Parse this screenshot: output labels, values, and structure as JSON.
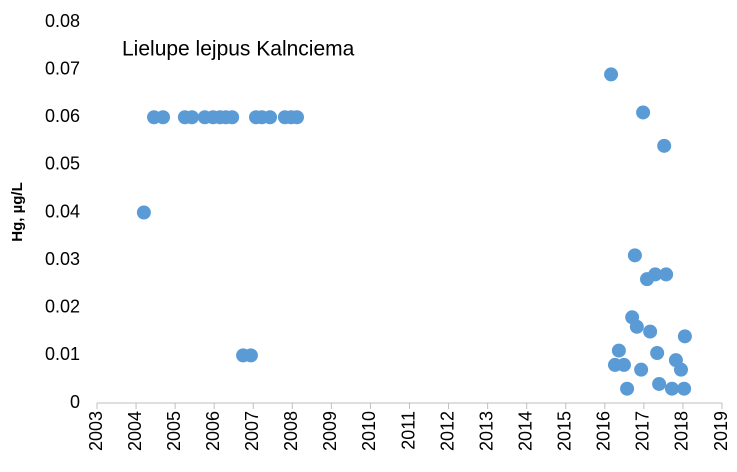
{
  "chart_data": {
    "type": "scatter",
    "annotation": "Lielupe lejpus Kalnciema",
    "ylabel": "Hg, µg/L",
    "series": [
      {
        "color": "#5b9bd5",
        "x": [
          2004.2,
          2004.46,
          2004.69,
          2005.25,
          2005.43,
          2005.76,
          2005.97,
          2006.15,
          2006.3,
          2006.46,
          2007.07,
          2007.22,
          2007.43,
          2007.81,
          2007.97,
          2008.12,
          2006.74,
          2006.94,
          2016.16,
          2016.98,
          2017.52,
          2016.77,
          2017.08,
          2017.29,
          2017.57,
          2016.7,
          2016.82,
          2017.16,
          2016.36,
          2016.26,
          2016.49,
          2016.93,
          2017.34,
          2016.57,
          2017.39,
          2017.72,
          2017.82,
          2017.95,
          2018.03,
          2018.05
        ],
        "values": [
          0.04,
          0.06,
          0.06,
          0.06,
          0.06,
          0.06,
          0.06,
          0.06,
          0.06,
          0.06,
          0.06,
          0.06,
          0.06,
          0.06,
          0.06,
          0.06,
          0.01,
          0.01,
          0.069,
          0.061,
          0.054,
          0.031,
          0.026,
          0.027,
          0.027,
          0.018,
          0.016,
          0.015,
          0.011,
          0.008,
          0.008,
          0.007,
          0.0105,
          0.003,
          0.004,
          0.003,
          0.009,
          0.007,
          0.003,
          0.014
        ]
      }
    ],
    "xlim": [
      2003,
      2019
    ],
    "xticks": [
      2003,
      2004,
      2005,
      2006,
      2007,
      2008,
      2009,
      2010,
      2011,
      2012,
      2013,
      2014,
      2015,
      2016,
      2017,
      2018,
      2019
    ],
    "ylim": [
      0,
      0.08
    ],
    "yticks": [
      0,
      0.01,
      0.02,
      0.03,
      0.04,
      0.05,
      0.06,
      0.07,
      0.08
    ],
    "grid": false
  }
}
